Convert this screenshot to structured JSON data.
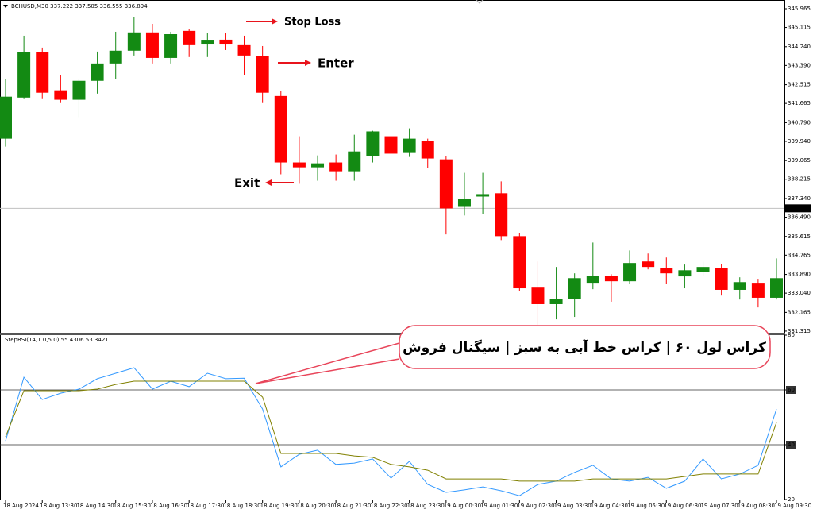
{
  "chart_data": [
    {
      "type": "candlestick",
      "title": "BCHUSD,M30  337.222 337.505 336.555 336.894",
      "categories": [
        "18 Aug 2024",
        null,
        "18 Aug 13:30",
        null,
        "18 Aug 14:30",
        null,
        "18 Aug 15:30",
        null,
        "18 Aug 16:30",
        null,
        "18 Aug 17:30",
        null,
        "18 Aug 18:30",
        null,
        "18 Aug 19:30",
        null,
        "18 Aug 20:30",
        null,
        "18 Aug 21:30",
        null,
        "18 Aug 22:30",
        null,
        "18 Aug 23:30",
        null,
        "19 Aug 00:30",
        null,
        "19 Aug 01:30",
        null,
        "19 Aug 02:30",
        null,
        "19 Aug 03:30",
        null,
        "19 Aug 04:30",
        null,
        "19 Aug 05:30",
        null,
        "19 Aug 06:30",
        null,
        "19 Aug 07:30",
        null,
        "19 Aug 08:30",
        null,
        "19 Aug 09:30"
      ],
      "open": [
        340.06,
        341.93,
        343.99,
        342.26,
        341.83,
        342.69,
        343.48,
        344.06,
        344.89,
        343.73,
        344.96,
        344.34,
        344.56,
        344.31,
        343.8,
        342.0,
        338.98,
        338.76,
        338.98,
        338.58,
        339.27,
        340.17,
        339.41,
        339.95,
        339.12,
        336.96,
        337.43,
        337.58,
        335.63,
        333.29,
        332.54,
        332.79,
        333.51,
        333.83,
        333.58,
        334.48,
        334.19,
        333.8,
        334.01,
        334.19,
        333.19,
        333.51,
        332.83
      ],
      "high": [
        342.76,
        344.74,
        344.2,
        342.94,
        342.76,
        344.02,
        344.92,
        345.57,
        345.28,
        344.92,
        345.06,
        344.85,
        344.85,
        344.74,
        344.27,
        342.22,
        340.17,
        339.3,
        339.34,
        340.24,
        340.42,
        340.31,
        340.53,
        340.06,
        339.27,
        338.51,
        338.51,
        338.12,
        335.78,
        334.48,
        334.23,
        333.94,
        335.34,
        333.9,
        334.98,
        334.84,
        334.66,
        334.34,
        334.48,
        334.35,
        333.76,
        333.69,
        334.62
      ],
      "low": [
        339.7,
        341.86,
        341.86,
        341.68,
        341.03,
        342.11,
        342.76,
        343.84,
        343.48,
        343.48,
        343.77,
        343.77,
        344.09,
        342.94,
        341.68,
        338.44,
        338.01,
        338.15,
        338.15,
        338.15,
        338.98,
        339.23,
        339.23,
        338.73,
        335.71,
        336.57,
        336.64,
        335.45,
        333.15,
        331.6,
        331.85,
        331.96,
        333.22,
        332.65,
        333.47,
        334.12,
        333.47,
        333.26,
        333.83,
        332.93,
        332.75,
        332.39,
        332.75
      ],
      "close": [
        341.97,
        343.99,
        342.15,
        341.83,
        342.69,
        343.48,
        344.06,
        344.89,
        343.73,
        344.81,
        344.31,
        344.52,
        344.34,
        343.84,
        342.15,
        338.98,
        338.76,
        338.94,
        338.58,
        339.48,
        340.39,
        339.38,
        340.06,
        339.16,
        336.89,
        337.32,
        337.54,
        335.63,
        333.26,
        332.54,
        332.79,
        333.72,
        333.83,
        333.58,
        334.41,
        334.23,
        333.94,
        334.08,
        334.23,
        333.19,
        333.54,
        332.83,
        333.72
      ],
      "up_color": "#138a13",
      "down_color": "#ff0000",
      "ylim": [
        331.24,
        346.29
      ],
      "yticks": [
        345.965,
        345.115,
        {
          "value": 344.24,
          "label": "344.240"
        },
        {
          "value": 343.39,
          "label": "343.390"
        },
        342.515,
        341.665,
        {
          "value": 340.79,
          "label": "340.790"
        },
        {
          "value": 339.94,
          "label": "339.940"
        },
        339.065,
        338.215,
        {
          "value": 337.34,
          "label": "337.340"
        },
        {
          "value": 336.49,
          "label": "336.490"
        },
        335.615,
        334.765,
        {
          "value": 333.89,
          "label": "333.890"
        },
        {
          "value": 333.04,
          "label": "333.040"
        },
        332.165,
        331.315
      ],
      "last_price": 336.894,
      "annotations": [
        {
          "text": "Stop Loss",
          "color": "#e8141c"
        },
        {
          "text": "Enter",
          "color": "#1f9a3a"
        },
        {
          "text": "Exit",
          "color": "#1f3fd8"
        },
        {
          "text": "کراس لول ۶۰ | کراس خط آبی به سبز | سیگنال فروش",
          "color": "#000000"
        }
      ]
    },
    {
      "type": "line",
      "title": "StepRSI(14,1.0,5.0) 55.4306 53.3421",
      "series": [
        {
          "color": "#3399ff",
          "values": [
            41.4,
            64.6,
            56.5,
            58.8,
            60.3,
            64.1,
            66.1,
            68.1,
            60.3,
            63.2,
            61.2,
            66.1,
            64.1,
            64.3,
            53.0,
            31.9,
            36.5,
            38.0,
            32.8,
            33.3,
            34.8,
            27.8,
            33.9,
            25.5,
            22.6,
            23.5,
            24.6,
            23.2,
            21.4,
            25.5,
            26.7,
            29.9,
            32.5,
            27.5,
            26.7,
            28.1,
            24.1,
            26.7,
            34.8,
            27.5,
            29.3,
            32.5,
            53.0
          ]
        },
        {
          "color": "#808000",
          "values": [
            42.9,
            59.7,
            59.7,
            59.7,
            59.7,
            60.3,
            62.0,
            63.2,
            63.2,
            63.2,
            63.2,
            63.2,
            63.2,
            63.2,
            57.4,
            36.8,
            36.8,
            36.8,
            36.8,
            35.9,
            35.4,
            32.8,
            31.9,
            30.7,
            27.5,
            27.5,
            27.5,
            27.5,
            26.7,
            26.7,
            26.7,
            26.7,
            27.5,
            27.5,
            27.5,
            27.5,
            27.5,
            28.4,
            29.3,
            29.3,
            29.3,
            29.3,
            48.1
          ]
        }
      ],
      "ylim": [
        20,
        80
      ],
      "yticks": [
        80,
        60,
        40,
        20
      ],
      "levels": [
        60,
        40
      ]
    }
  ]
}
